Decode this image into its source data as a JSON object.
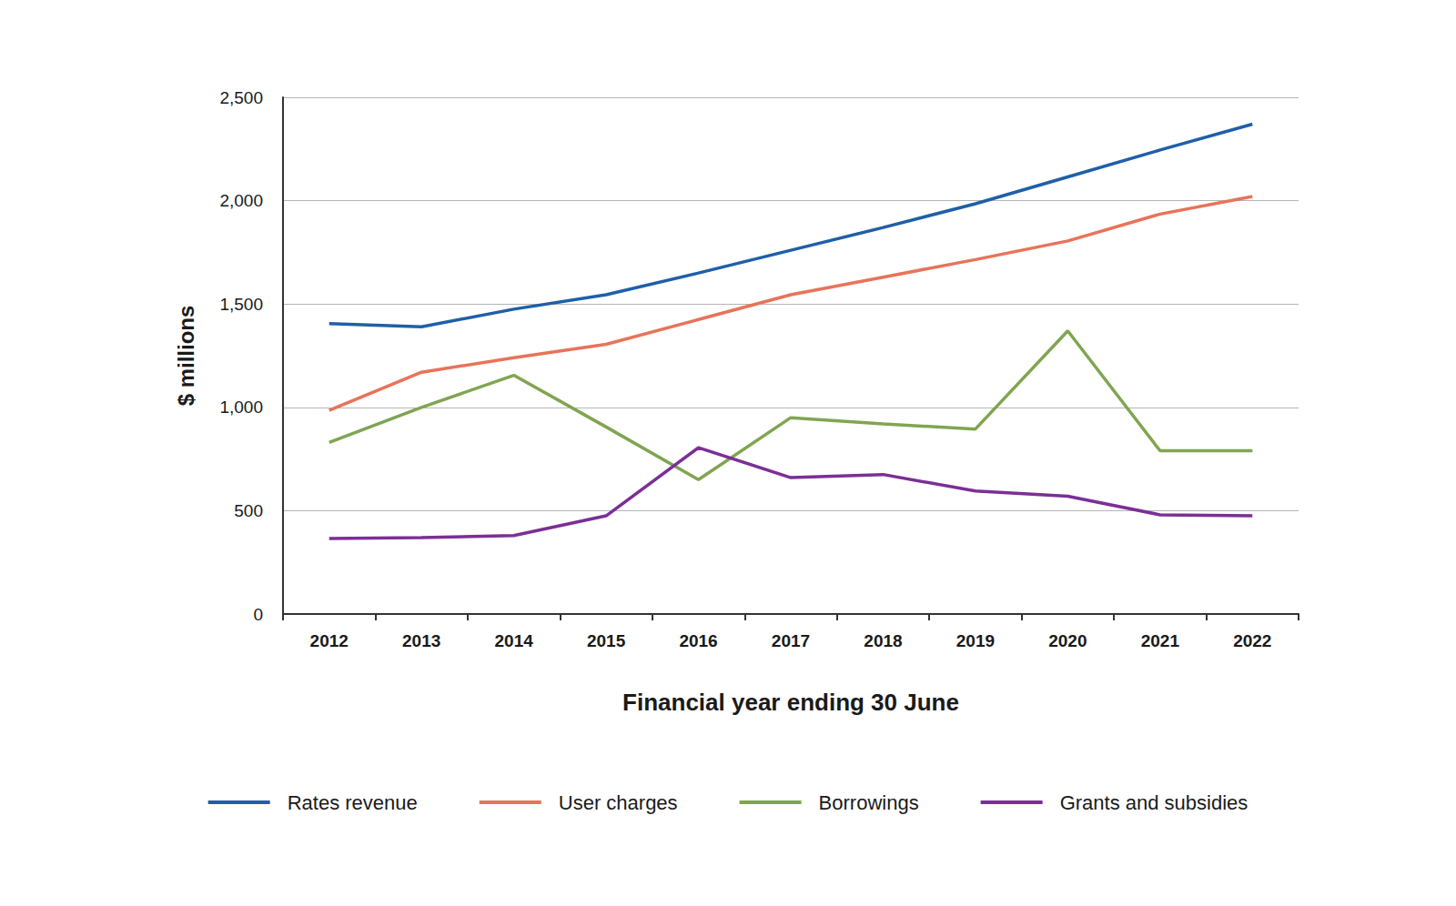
{
  "chart_data": {
    "type": "line",
    "x_label": "Financial year ending 30 June",
    "y_label": "$ millions",
    "categories": [
      "2012",
      "2013",
      "2014",
      "2015",
      "2016",
      "2017",
      "2018",
      "2019",
      "2020",
      "2021",
      "2022"
    ],
    "series": [
      {
        "name": "Rates revenue",
        "color": "#1f5fa8",
        "values": [
          1405,
          1390,
          1475,
          1545,
          1650,
          1760,
          1870,
          1985,
          2115,
          2245,
          2370
        ]
      },
      {
        "name": "User charges",
        "color": "#e8735a",
        "values": [
          985,
          1170,
          1240,
          1305,
          1425,
          1545,
          1630,
          1715,
          1805,
          1935,
          2020
        ]
      },
      {
        "name": "Borrowings",
        "color": "#80a551",
        "values": [
          830,
          1000,
          1155,
          905,
          650,
          950,
          920,
          895,
          1370,
          790,
          790
        ]
      },
      {
        "name": "Grants and subsidies",
        "color": "#7b2f96",
        "values": [
          365,
          370,
          380,
          475,
          805,
          660,
          675,
          595,
          570,
          480,
          475
        ]
      }
    ],
    "ylim": [
      0,
      2500
    ],
    "yticks": [
      0,
      500,
      1000,
      1500,
      2000,
      2500
    ],
    "grid": true,
    "legend": "bottom"
  }
}
